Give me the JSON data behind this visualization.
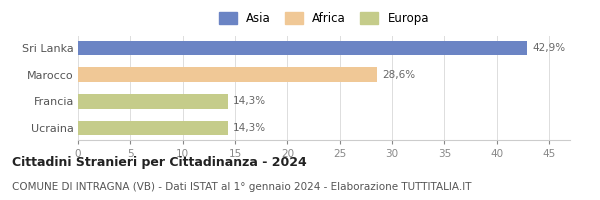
{
  "categories": [
    "Sri Lanka",
    "Marocco",
    "Francia",
    "Ucraina"
  ],
  "values": [
    42.9,
    28.6,
    14.3,
    14.3
  ],
  "labels": [
    "42,9%",
    "28,6%",
    "14,3%",
    "14,3%"
  ],
  "bar_colors": [
    "#6b84c4",
    "#f0c896",
    "#c5cc8a",
    "#c5cc8a"
  ],
  "legend_labels": [
    "Asia",
    "Africa",
    "Europa"
  ],
  "legend_colors": [
    "#6b84c4",
    "#f0c896",
    "#c5cc8a"
  ],
  "xlim": [
    0,
    47
  ],
  "xticks": [
    0,
    5,
    10,
    15,
    20,
    25,
    30,
    35,
    40,
    45
  ],
  "title": "Cittadini Stranieri per Cittadinanza - 2024",
  "subtitle": "COMUNE DI INTRAGNA (VB) - Dati ISTAT al 1° gennaio 2024 - Elaborazione TUTTITALIA.IT",
  "title_fontsize": 9,
  "subtitle_fontsize": 7.5,
  "background_color": "#ffffff",
  "bar_height": 0.55,
  "label_fontsize": 7.5,
  "tick_fontsize": 7.5,
  "category_fontsize": 8,
  "legend_fontsize": 8.5
}
